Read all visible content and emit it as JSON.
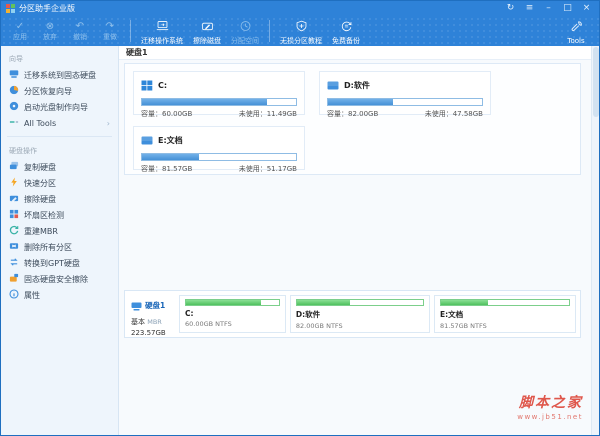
{
  "window": {
    "title": "分区助手企业版",
    "controls": {
      "refresh": "↻",
      "menu": "≡",
      "minimize": "–",
      "maximize": "□",
      "close": "×"
    }
  },
  "toolbar": {
    "apply": "应用",
    "discard": "放弃",
    "undo": "撤销",
    "redo": "重做",
    "apply_glyph": "✓",
    "discard_glyph": "⊗",
    "undo_glyph": "↶",
    "redo_glyph": "↷",
    "migrate_os": "迁移操作系统",
    "wipe_disk": "擦除磁盘",
    "allocate_space": "分配空间",
    "tutorial": "无损分区教程",
    "free_backup": "免费备份",
    "tools": "Tools"
  },
  "sidebar": {
    "wizards_header": "向导",
    "wizards": [
      {
        "label": "迁移系统到固态硬盘"
      },
      {
        "label": "分区恢复向导"
      },
      {
        "label": "启动光盘制作向导"
      },
      {
        "label": "All Tools",
        "chevron": "›"
      }
    ],
    "diskops_header": "硬盘操作",
    "diskops": [
      {
        "label": "复制硬盘"
      },
      {
        "label": "快速分区"
      },
      {
        "label": "擦除硬盘"
      },
      {
        "label": "坏扇区检测"
      },
      {
        "label": "重建MBR"
      },
      {
        "label": "删除所有分区"
      },
      {
        "label": "转换到GPT硬盘"
      },
      {
        "label": "固态硬盘安全擦除"
      },
      {
        "label": "属性"
      }
    ]
  },
  "main": {
    "disk_title": "硬盘1",
    "capacity_label": "容量：",
    "unused_label": "未使用：",
    "partitions": [
      {
        "name": "C:",
        "capacity": "60.00GB",
        "unused": "11.49GB",
        "used_pct": 81
      },
      {
        "name": "D:软件",
        "capacity": "82.00GB",
        "unused": "47.58GB",
        "used_pct": 42
      },
      {
        "name": "E:文档",
        "capacity": "81.57GB",
        "unused": "51.17GB",
        "used_pct": 37
      }
    ]
  },
  "overview": {
    "disk_name": "硬盘1",
    "disk_type": "基本",
    "partition_style": "MBR",
    "disk_size": "223.57GB",
    "blocks": [
      {
        "label": "C:",
        "size": "60.00GB NTFS",
        "used_pct": 81,
        "width_pct": 27
      },
      {
        "label": "D:软件",
        "size": "82.00GB NTFS",
        "used_pct": 42,
        "width_pct": 35.5
      },
      {
        "label": "E:文档",
        "size": "81.57GB NTFS",
        "used_pct": 37,
        "width_pct": 36
      }
    ]
  },
  "watermark": {
    "name": "脚本之家",
    "url": "www.jb51.net"
  },
  "colors": {
    "titlebar_blue": "#2e82d8",
    "accent_blue": "#3f8fdc",
    "used_bar_blue": "#4691d6",
    "used_bar_green": "#4fc05e",
    "watermark_red": "#df564b"
  }
}
